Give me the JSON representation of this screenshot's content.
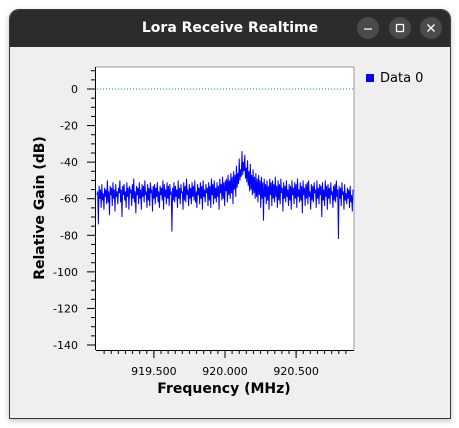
{
  "window": {
    "title": "Lora Receive Realtime",
    "buttons": [
      "minimize",
      "maximize",
      "close"
    ]
  },
  "legend": {
    "series_name": "Data 0",
    "color": "#0000ff"
  },
  "chart_data": {
    "type": "line",
    "xlabel": "Frequency (MHz)",
    "ylabel": "Relative Gain (dB)",
    "x_ticks": [
      "919.500",
      "920.000",
      "920.500"
    ],
    "x_tick_values": [
      919.5,
      920.0,
      920.5
    ],
    "y_ticks": [
      "0",
      "-20",
      "-40",
      "-60",
      "-80",
      "-100",
      "-120",
      "-140"
    ],
    "y_tick_values": [
      0,
      -20,
      -40,
      -60,
      -80,
      -100,
      -120,
      -140
    ],
    "xlim": [
      919.1,
      920.9
    ],
    "ylim": [
      -145,
      12
    ],
    "threshold_line": {
      "value": 0,
      "color": "#008b8b",
      "style": "dotted"
    },
    "series": [
      {
        "name": "Data 0",
        "color": "#0000ff",
        "x_start": 919.1,
        "x_step": 0.0025,
        "values": [
          -58,
          -56,
          -74,
          -53,
          -60,
          -55,
          -65,
          -52,
          -61,
          -57,
          -66,
          -54,
          -59,
          -55,
          -63,
          -50,
          -62,
          -56,
          -69,
          -53,
          -58,
          -54,
          -64,
          -51,
          -60,
          -55,
          -67,
          -52,
          -59,
          -56,
          -63,
          -54,
          -57,
          -50,
          -62,
          -55,
          -70,
          -53,
          -58,
          -52,
          -61,
          -56,
          -65,
          -51,
          -59,
          -54,
          -66,
          -53,
          -57,
          -55,
          -64,
          -52,
          -60,
          -49,
          -62,
          -56,
          -68,
          -53,
          -58,
          -54,
          -63,
          -51,
          -60,
          -55,
          -66,
          -52,
          -59,
          -53,
          -62,
          -50,
          -58,
          -56,
          -65,
          -52,
          -61,
          -54,
          -64,
          -51,
          -57,
          -55,
          -67,
          -53,
          -60,
          -52,
          -63,
          -54,
          -59,
          -51,
          -62,
          -56,
          -65,
          -53,
          -58,
          -54,
          -61,
          -50,
          -66,
          -52,
          -59,
          -55,
          -63,
          -51,
          -60,
          -53,
          -64,
          -52,
          -58,
          -56,
          -78,
          -54,
          -61,
          -51,
          -62,
          -53,
          -59,
          -55,
          -65,
          -50,
          -60,
          -54,
          -63,
          -52,
          -57,
          -56,
          -66,
          -51,
          -61,
          -53,
          -62,
          -49,
          -58,
          -55,
          -64,
          -52,
          -60,
          -54,
          -63,
          -51,
          -59,
          -53,
          -61,
          -50,
          -62,
          -56,
          -65,
          -52,
          -58,
          -54,
          -63,
          -51,
          -60,
          -53,
          -66,
          -50,
          -59,
          -55,
          -62,
          -52,
          -57,
          -54,
          -64,
          -51,
          -61,
          -53,
          -65,
          -49,
          -58,
          -52,
          -63,
          -50,
          -60,
          -54,
          -62,
          -51,
          -59,
          -53,
          -66,
          -49,
          -57,
          -52,
          -61,
          -48,
          -60,
          -51,
          -64,
          -50,
          -56,
          -49,
          -62,
          -47,
          -58,
          -50,
          -60,
          -46,
          -57,
          -48,
          -63,
          -45,
          -55,
          -47,
          -59,
          -42,
          -54,
          -46,
          -52,
          -38,
          -50,
          -44,
          -48,
          -34,
          -47,
          -40,
          -45,
          -36,
          -49,
          -43,
          -51,
          -39,
          -53,
          -45,
          -56,
          -41,
          -55,
          -47,
          -58,
          -44,
          -57,
          -48,
          -60,
          -46,
          -59,
          -49,
          -62,
          -47,
          -58,
          -50,
          -65,
          -48,
          -60,
          -51,
          -72,
          -49,
          -59,
          -52,
          -63,
          -50,
          -61,
          -53,
          -66,
          -49,
          -58,
          -51,
          -64,
          -50,
          -60,
          -52,
          -62,
          -48,
          -59,
          -53,
          -65,
          -50,
          -61,
          -52,
          -63,
          -49,
          -57,
          -54,
          -67,
          -51,
          -60,
          -53,
          -62,
          -50,
          -59,
          -55,
          -64,
          -52,
          -61,
          -53,
          -66,
          -50,
          -58,
          -54,
          -63,
          -51,
          -60,
          -52,
          -65,
          -49,
          -59,
          -55,
          -62,
          -51,
          -61,
          -53,
          -68,
          -50,
          -58,
          -54,
          -64,
          -52,
          -60,
          -51,
          -63,
          -50,
          -59,
          -56,
          -66,
          -52,
          -61,
          -53,
          -62,
          -51,
          -57,
          -55,
          -65,
          -50,
          -60,
          -54,
          -63,
          -52,
          -58,
          -53,
          -70,
          -51,
          -61,
          -55,
          -64,
          -50,
          -59,
          -53,
          -66,
          -52,
          -60,
          -54,
          -63,
          -51,
          -58,
          -56,
          -65,
          -53,
          -61,
          -52,
          -62,
          -50,
          -59,
          -55,
          -82,
          -53,
          -60,
          -54,
          -64,
          -51,
          -58,
          -56,
          -66,
          -52,
          -61,
          -57,
          -63,
          -54,
          -60,
          -55,
          -65,
          -53,
          -62,
          -58,
          -67,
          -55
        ]
      }
    ],
    "grid": false,
    "legend_position": "right"
  }
}
